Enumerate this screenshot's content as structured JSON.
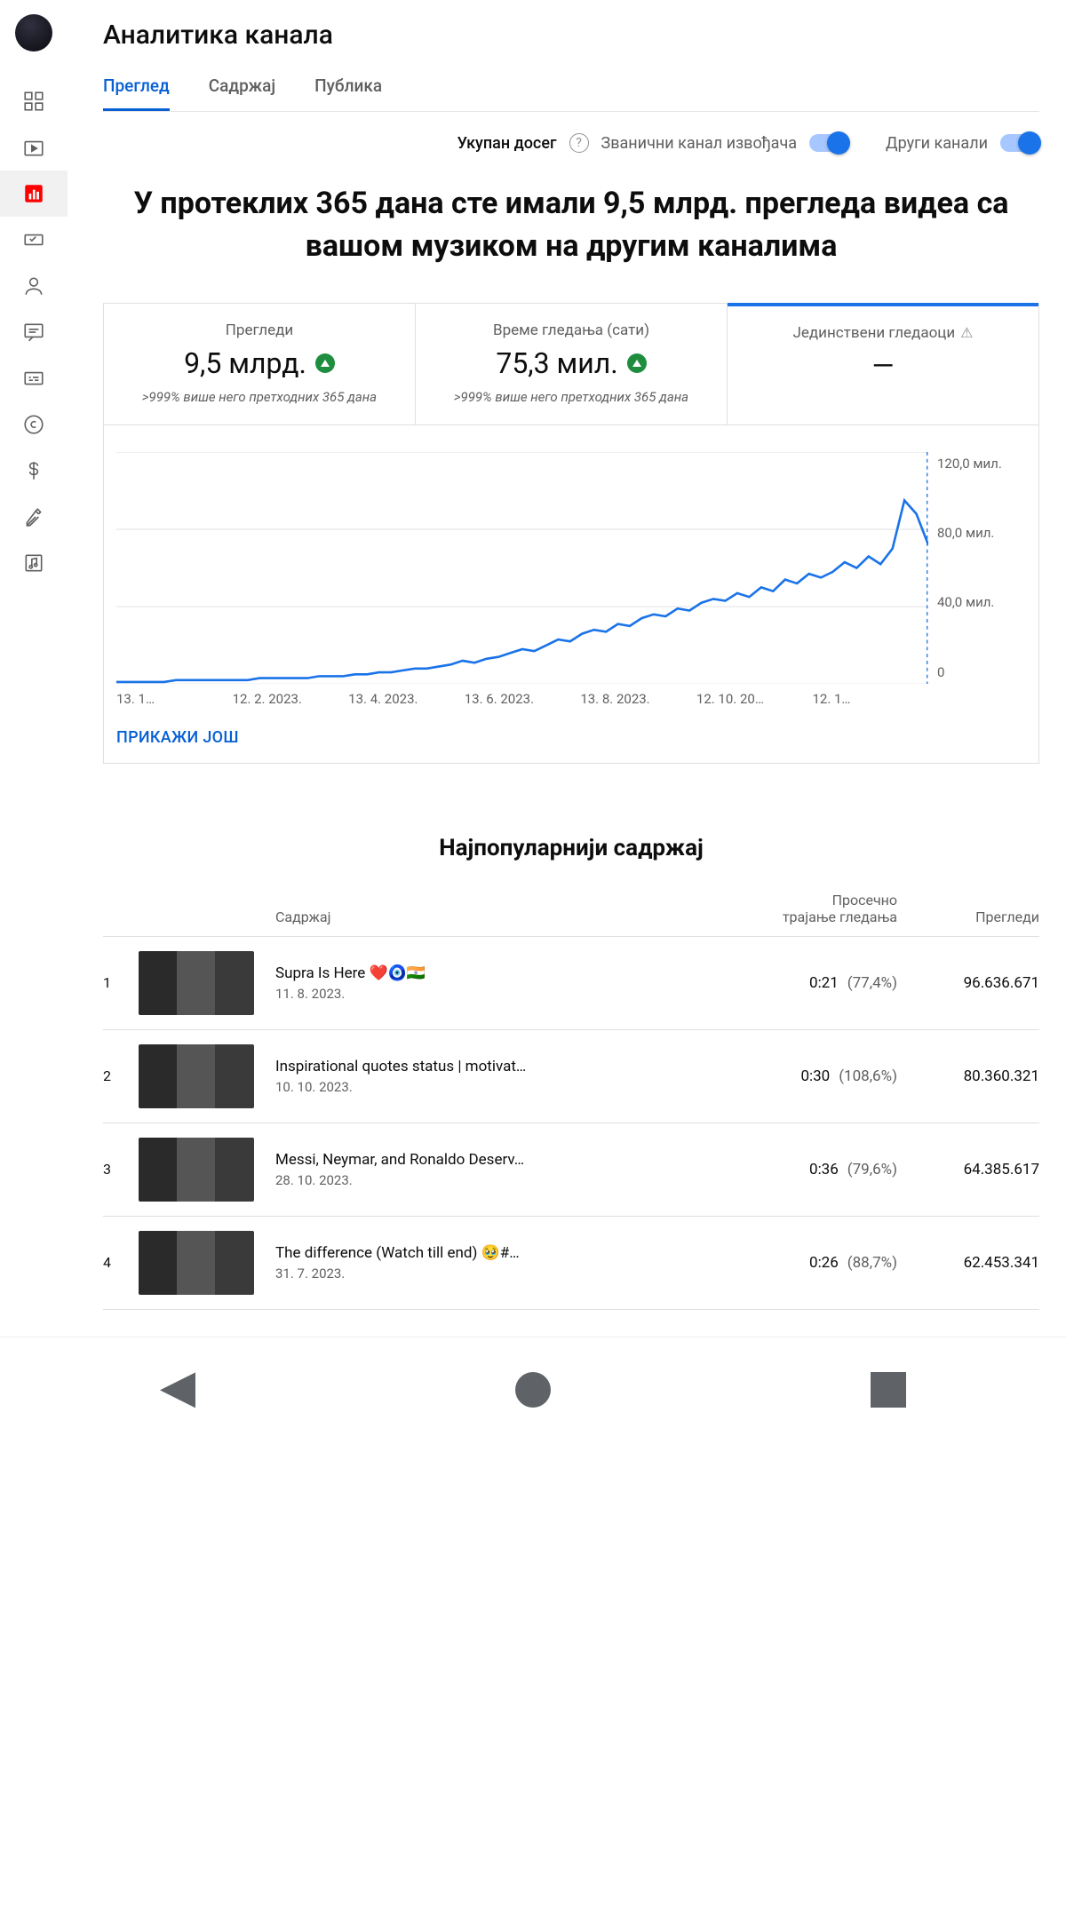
{
  "page": {
    "title": "Аналитика канала"
  },
  "tabs": {
    "t0": "Преглед",
    "t1": "Садржај",
    "t2": "Публика"
  },
  "toggles": {
    "reach_label": "Укупан досег",
    "official_label": "Званични канал извођача",
    "other_label": "Други канали"
  },
  "headline": "У протеклих 365 дана сте имали 9,5 млрд. прегледа видеа са вашом музиком на другим каналима",
  "metrics": {
    "views": {
      "title": "Прегледи",
      "value": "9,5 млрд.",
      "sub": ">999% више него претходних 365 дана"
    },
    "watch": {
      "title": "Време гледања (сати)",
      "value": "75,3 мил.",
      "sub": ">999% више него претходних 365 дана"
    },
    "unique": {
      "title": "Јединствени гледаоци",
      "value": "—"
    }
  },
  "chart": {
    "type": "line",
    "line_color": "#1a73e8",
    "grid_color": "#e8e8e8",
    "background_color": "#ffffff",
    "ylim": [
      0,
      120
    ],
    "ytick_labels": [
      "120,0 мил.",
      "80,0 мил.",
      "40,0 мил.",
      "0"
    ],
    "xtick_labels": [
      "13. 1…",
      "12. 2. 2023.",
      "13. 4. 2023.",
      "13. 6. 2023.",
      "13. 8. 2023.",
      "12. 10. 20…",
      "12. 1…"
    ],
    "values": [
      1,
      1,
      1,
      1,
      1,
      2,
      2,
      2,
      2,
      2,
      2,
      2,
      3,
      3,
      3,
      3,
      3,
      4,
      4,
      4,
      5,
      5,
      6,
      6,
      7,
      8,
      8,
      9,
      10,
      12,
      11,
      13,
      14,
      16,
      18,
      17,
      20,
      23,
      22,
      26,
      28,
      27,
      31,
      30,
      34,
      36,
      35,
      39,
      38,
      42,
      44,
      43,
      47,
      45,
      50,
      48,
      54,
      52,
      57,
      55,
      58,
      63,
      60,
      66,
      62,
      70,
      95,
      88,
      72
    ],
    "show_more": "ПРИКАЖИ ЈОШ"
  },
  "top": {
    "section_title": "Најпопуларнији садржај",
    "col_content": "Садржај",
    "col_duration_l1": "Просечно",
    "col_duration_l2": "трајање гледања",
    "col_views": "Прегледи",
    "rows": [
      {
        "rank": "1",
        "title": "Supra Is Here ❤️🧿🇮🇳",
        "date": "11. 8. 2023.",
        "dur": "0:21",
        "pct": "(77,4%)",
        "views": "96.636.671"
      },
      {
        "rank": "2",
        "title": "Inspirational quotes status | motivat…",
        "date": "10. 10. 2023.",
        "dur": "0:30",
        "pct": "(108,6%)",
        "views": "80.360.321"
      },
      {
        "rank": "3",
        "title": "Messi, Neymar, and Ronaldo Deserv…",
        "date": "28. 10. 2023.",
        "dur": "0:36",
        "pct": "(79,6%)",
        "views": "64.385.617"
      },
      {
        "rank": "4",
        "title": "The difference (Watch till end) 🥹#…",
        "date": "31. 7. 2023.",
        "dur": "0:26",
        "pct": "(88,7%)",
        "views": "62.453.341"
      }
    ]
  }
}
